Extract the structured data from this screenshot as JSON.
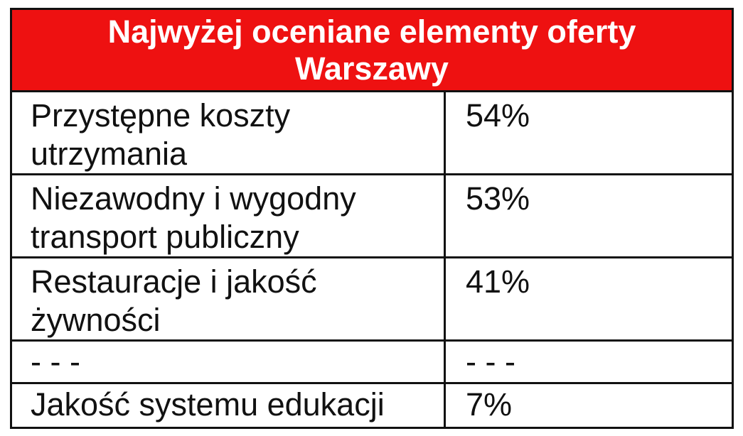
{
  "table": {
    "title": "Najwyżej oceniane elementy oferty Warszawy",
    "rows": [
      {
        "label": "Przystępne koszty utrzymania",
        "value": "54%"
      },
      {
        "label": "Niezawodny i wygodny transport publiczny",
        "value": "53%"
      },
      {
        "label": "Restauracje i jakość żywności",
        "value": "41%"
      },
      {
        "label": "- - -",
        "value": "- - -"
      },
      {
        "label": "Jakość systemu edukacji",
        "value": "7%"
      }
    ]
  },
  "colors": {
    "header_background": "#ee1111",
    "header_text": "#ffffff",
    "border": "#111111"
  }
}
